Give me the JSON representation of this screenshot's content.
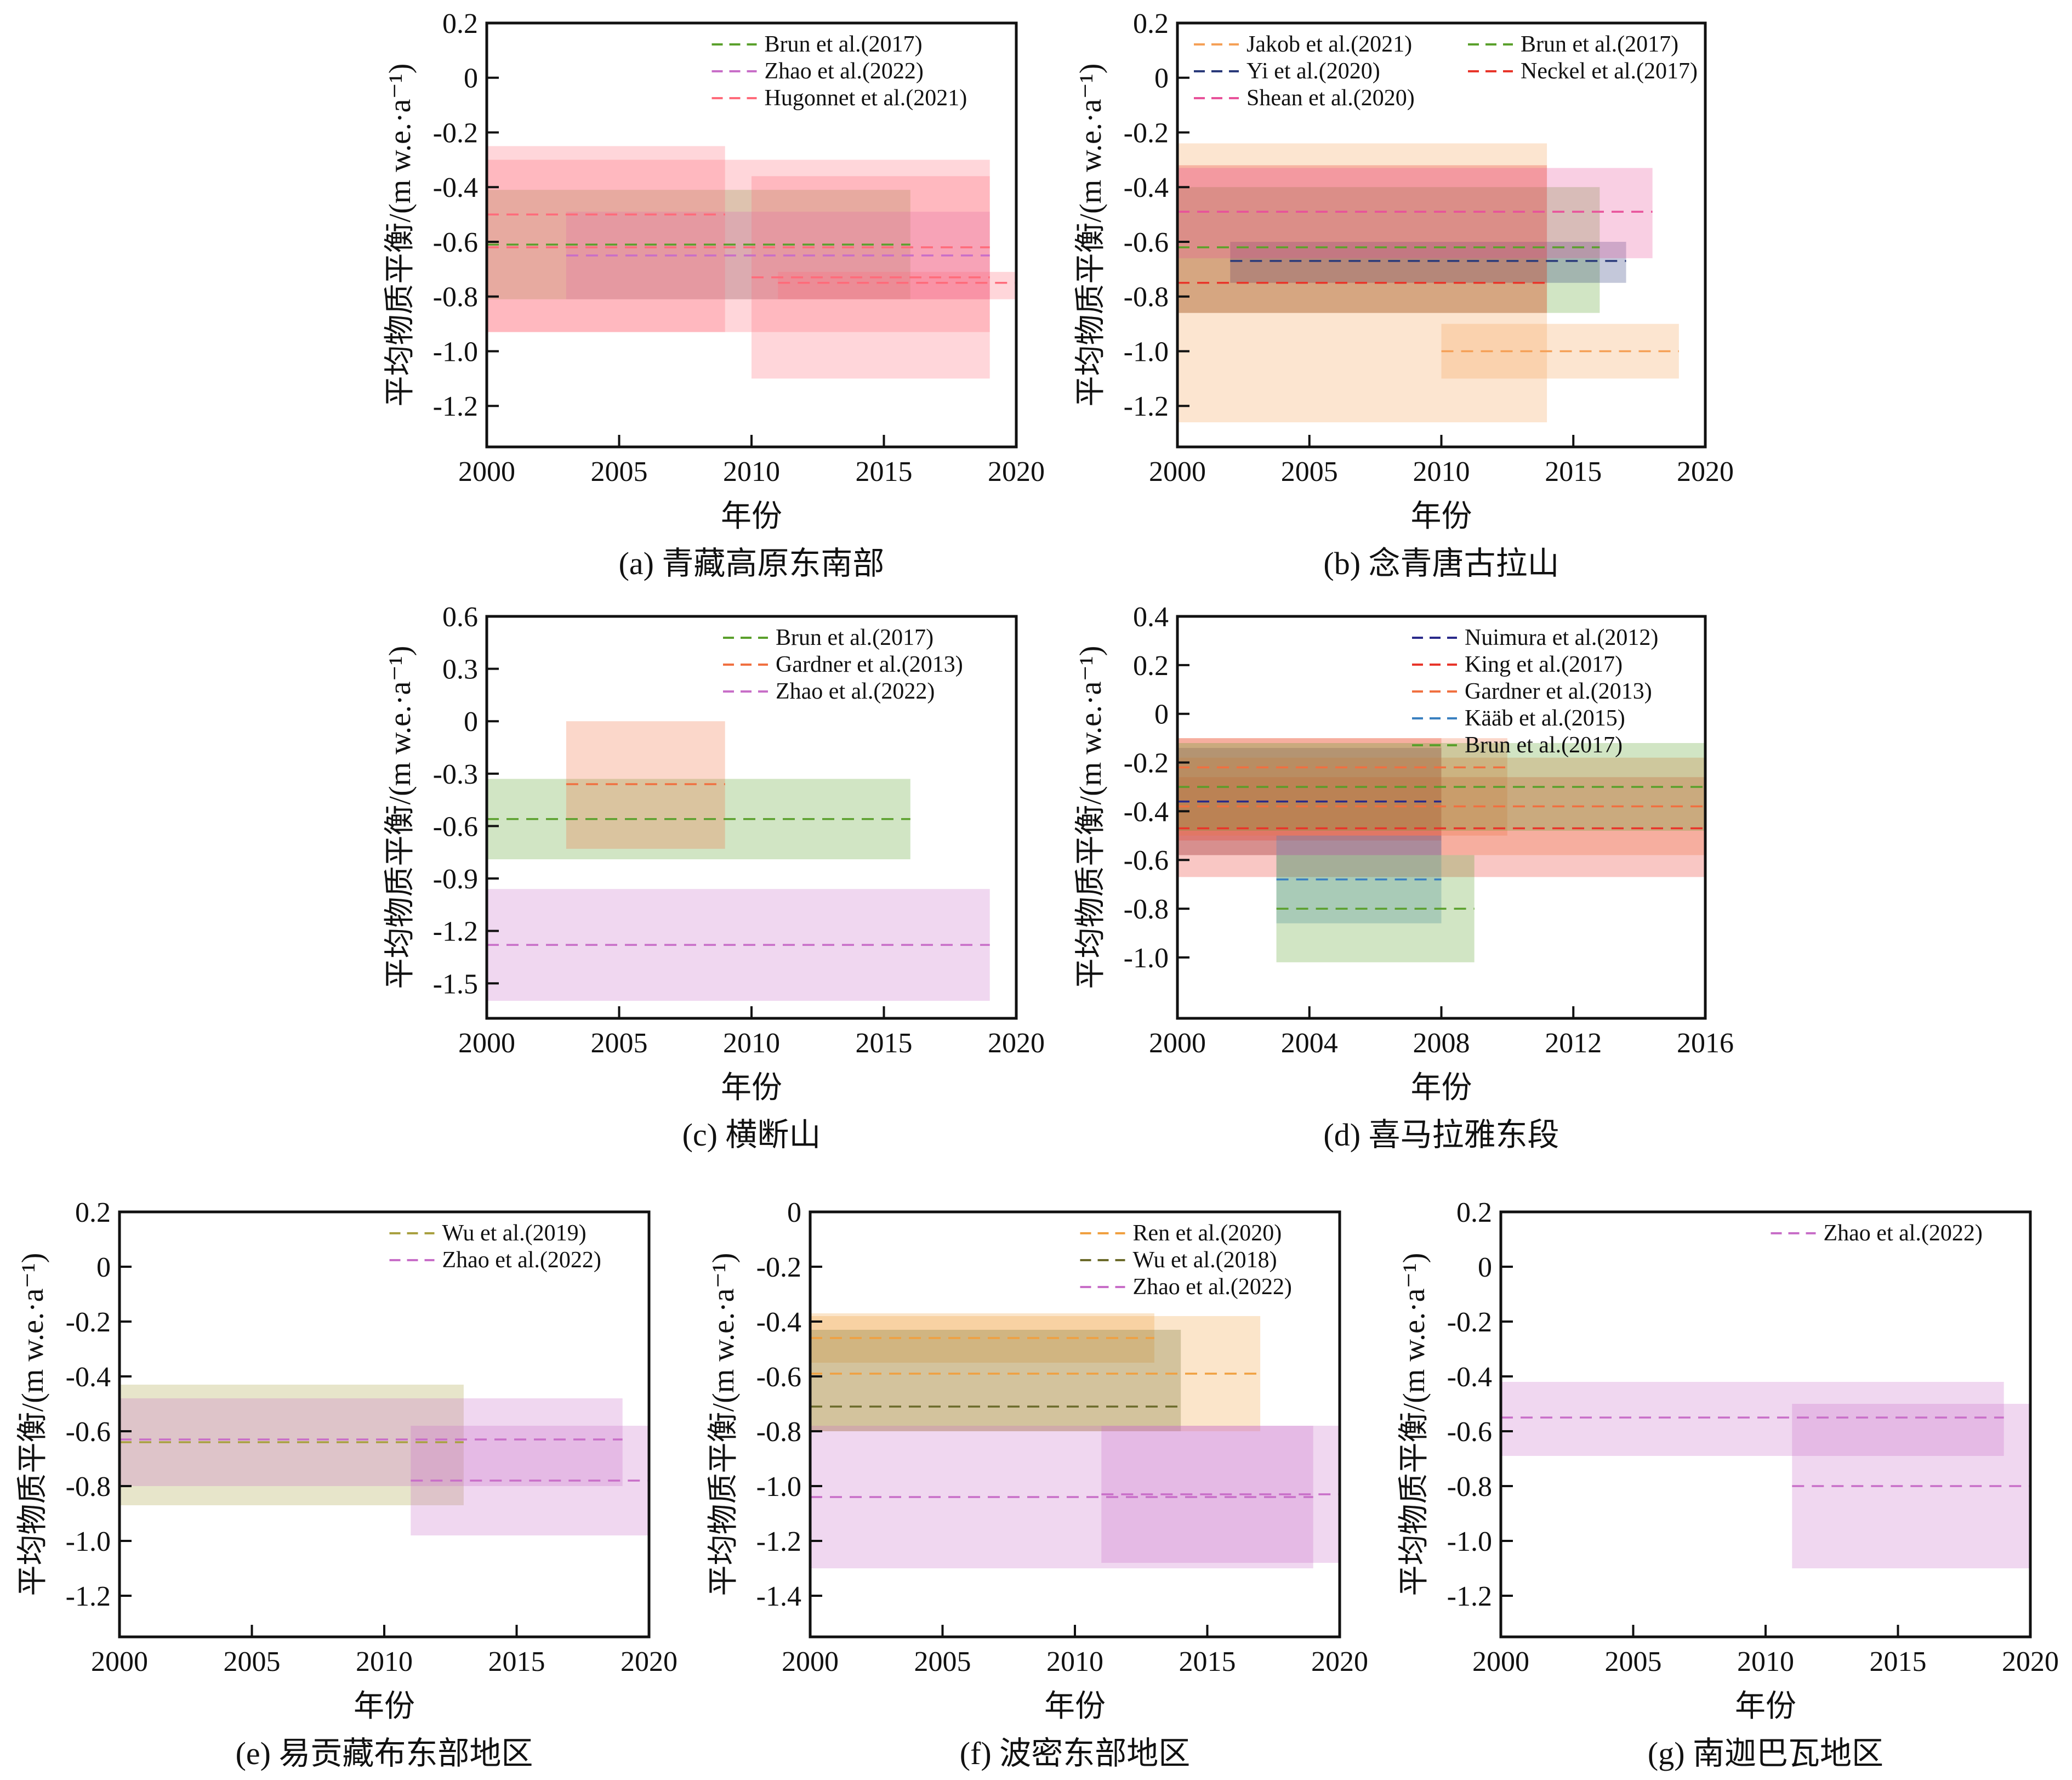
{
  "chart_data": [
    {
      "id": "a",
      "type": "bar",
      "caption": "(a) 青藏高原东南部",
      "xlabel": "年份",
      "ylabel": "平均物质平衡/(m w.e.·a⁻¹)",
      "xlim": [
        2000,
        2020
      ],
      "ylim": [
        -1.35,
        0.2
      ],
      "xticks": [
        2000,
        2005,
        2010,
        2015,
        2020
      ],
      "yticks": [
        0.2,
        0,
        -0.2,
        -0.4,
        -0.6,
        -0.8,
        -1.0,
        -1.2
      ],
      "ytick_labels": [
        "0.2",
        "0",
        "-0.2",
        "-0.4",
        "-0.6",
        "-0.8",
        "-1.0",
        "-1.2"
      ],
      "legend": {
        "placement": "top-right",
        "columns": 1
      },
      "series": [
        {
          "name": "Brun et al.(2017)",
          "color": "#5aa02c",
          "boxes": [
            {
              "x0": 2000,
              "x1": 2016,
              "y": -0.61,
              "lo": -0.81,
              "hi": -0.41
            }
          ]
        },
        {
          "name": "Zhao et al.(2022)",
          "color": "#c86ec8",
          "boxes": [
            {
              "x0": 2003,
              "x1": 2019,
              "y": -0.65,
              "lo": -0.81,
              "hi": -0.49
            }
          ]
        },
        {
          "name": "Hugonnet et al.(2021)",
          "color": "#ff6b7a",
          "boxes": [
            {
              "x0": 2000,
              "x1": 2009,
              "y": -0.5,
              "lo": -0.93,
              "hi": -0.25
            },
            {
              "x0": 2000,
              "x1": 2019,
              "y": -0.62,
              "lo": -0.93,
              "hi": -0.3
            },
            {
              "x0": 2010,
              "x1": 2019,
              "y": -0.73,
              "lo": -1.1,
              "hi": -0.36
            },
            {
              "x0": 2011,
              "x1": 2020,
              "y": -0.75,
              "lo": -0.81,
              "hi": -0.71
            }
          ]
        }
      ]
    },
    {
      "id": "b",
      "type": "bar",
      "caption": "(b) 念青唐古拉山",
      "xlabel": "年份",
      "ylabel": "平均物质平衡/(m w.e.·a⁻¹)",
      "xlim": [
        2000,
        2020
      ],
      "ylim": [
        -1.35,
        0.2
      ],
      "xticks": [
        2000,
        2005,
        2010,
        2015,
        2020
      ],
      "yticks": [
        0.2,
        0,
        -0.2,
        -0.4,
        -0.6,
        -0.8,
        -1.0,
        -1.2
      ],
      "ytick_labels": [
        "0.2",
        "0",
        "-0.2",
        "-0.4",
        "-0.6",
        "-0.8",
        "-1.0",
        "-1.2"
      ],
      "legend": {
        "placement": "top",
        "columns": 2
      },
      "series": [
        {
          "name": "Jakob et al.(2021)",
          "color": "#f5a056",
          "boxes": [
            {
              "x0": 2000,
              "x1": 2014,
              "y": -0.62,
              "lo": -1.26,
              "hi": -0.24
            },
            {
              "x0": 2010,
              "x1": 2019,
              "y": -1.0,
              "lo": -1.1,
              "hi": -0.9
            }
          ]
        },
        {
          "name": "Brun et al.(2017)",
          "color": "#5aa02c",
          "boxes": [
            {
              "x0": 2000,
              "x1": 2016,
              "y": -0.62,
              "lo": -0.86,
              "hi": -0.4
            }
          ]
        },
        {
          "name": "Yi et al.(2020)",
          "color": "#2a3a7a",
          "boxes": [
            {
              "x0": 2002,
              "x1": 2017,
              "y": -0.67,
              "lo": -0.75,
              "hi": -0.6
            }
          ]
        },
        {
          "name": "Neckel et al.(2017)",
          "color": "#e8352a",
          "boxes": [
            {
              "x0": 2000,
              "x1": 2014,
              "y": -0.75,
              "lo": -0.86,
              "hi": -0.32
            }
          ]
        },
        {
          "name": "Shean et al.(2020)",
          "color": "#e8529a",
          "boxes": [
            {
              "x0": 2000,
              "x1": 2018,
              "y": -0.49,
              "lo": -0.66,
              "hi": -0.33
            }
          ]
        }
      ]
    },
    {
      "id": "c",
      "type": "bar",
      "caption": "(c) 横断山",
      "xlabel": "年份",
      "ylabel": "平均物质平衡/(m w.e.·a⁻¹)",
      "xlim": [
        2000,
        2020
      ],
      "ylim": [
        -1.7,
        0.6
      ],
      "xticks": [
        2000,
        2005,
        2010,
        2015,
        2020
      ],
      "yticks": [
        0.6,
        0.3,
        0,
        -0.3,
        -0.6,
        -0.9,
        -1.2,
        -1.5
      ],
      "ytick_labels": [
        "0.6",
        "0.3",
        "0",
        "-0.3",
        "-0.6",
        "-0.9",
        "-1.2",
        "-1.5"
      ],
      "legend": {
        "placement": "top-right",
        "columns": 1
      },
      "series": [
        {
          "name": "Brun et al.(2017)",
          "color": "#5aa02c",
          "boxes": [
            {
              "x0": 2000,
              "x1": 2016,
              "y": -0.56,
              "lo": -0.79,
              "hi": -0.33
            }
          ]
        },
        {
          "name": "Gardner et al.(2013)",
          "color": "#f07040",
          "boxes": [
            {
              "x0": 2003,
              "x1": 2009,
              "y": -0.36,
              "lo": -0.73,
              "hi": 0.0
            }
          ]
        },
        {
          "name": "Zhao et al.(2022)",
          "color": "#c86ec8",
          "boxes": [
            {
              "x0": 2000,
              "x1": 2019,
              "y": -1.28,
              "lo": -1.6,
              "hi": -0.96
            }
          ]
        }
      ]
    },
    {
      "id": "d",
      "type": "bar",
      "caption": "(d) 喜马拉雅东段",
      "xlabel": "年份",
      "ylabel": "平均物质平衡/(m w.e.·a⁻¹)",
      "xlim": [
        2000,
        2016
      ],
      "ylim": [
        -1.25,
        0.4
      ],
      "xticks": [
        2000,
        2004,
        2008,
        2012,
        2016
      ],
      "yticks": [
        0.4,
        0.2,
        0,
        -0.2,
        -0.4,
        -0.6,
        -0.8,
        -1.0
      ],
      "ytick_labels": [
        "0.4",
        "0.2",
        "0",
        "-0.2",
        "-0.4",
        "-0.6",
        "-0.8",
        "-1.0"
      ],
      "legend": {
        "placement": "top-right",
        "columns": 1
      },
      "series": [
        {
          "name": "Nuimura et al.(2012)",
          "color": "#2a2a8a",
          "boxes": [
            {
              "x0": 2000,
              "x1": 2008,
              "y": -0.36,
              "lo": -0.58,
              "hi": -0.14
            }
          ]
        },
        {
          "name": "King et al.(2017)",
          "color": "#e8352a",
          "boxes": [
            {
              "x0": 2000,
              "x1": 2008,
              "y": -0.3,
              "lo": -0.52,
              "hi": -0.1
            },
            {
              "x0": 2000,
              "x1": 2016,
              "y": -0.47,
              "lo": -0.67,
              "hi": -0.26
            }
          ]
        },
        {
          "name": "Gardner et al.(2013)",
          "color": "#f07040",
          "boxes": [
            {
              "x0": 2000,
              "x1": 2010,
              "y": -0.22,
              "lo": -0.5,
              "hi": -0.1
            },
            {
              "x0": 2000,
              "x1": 2016,
              "y": -0.38,
              "lo": -0.58,
              "hi": -0.18
            }
          ]
        },
        {
          "name": "Kääb et al.(2015)",
          "color": "#3a80c0",
          "boxes": [
            {
              "x0": 2003,
              "x1": 2008,
              "y": -0.68,
              "lo": -0.86,
              "hi": -0.5
            }
          ]
        },
        {
          "name": "Brun et al.(2017)",
          "color": "#5aa02c",
          "boxes": [
            {
              "x0": 2003,
              "x1": 2009,
              "y": -0.8,
              "lo": -1.02,
              "hi": -0.58
            },
            {
              "x0": 2000,
              "x1": 2016,
              "y": -0.3,
              "lo": -0.48,
              "hi": -0.12
            }
          ]
        }
      ]
    },
    {
      "id": "e",
      "type": "bar",
      "caption": "(e) 易贡藏布东部地区",
      "xlabel": "年份",
      "ylabel": "平均物质平衡/(m w.e.·a⁻¹)",
      "xlim": [
        2000,
        2020
      ],
      "ylim": [
        -1.35,
        0.2
      ],
      "xticks": [
        2000,
        2005,
        2010,
        2015,
        2020
      ],
      "yticks": [
        0.2,
        0,
        -0.2,
        -0.4,
        -0.6,
        -0.8,
        -1.0,
        -1.2
      ],
      "ytick_labels": [
        "0.2",
        "0",
        "-0.2",
        "-0.4",
        "-0.6",
        "-0.8",
        "-1.0",
        "-1.2"
      ],
      "legend": {
        "placement": "top-right",
        "columns": 1
      },
      "series": [
        {
          "name": "Wu et al.(2019)",
          "color": "#a8a040",
          "boxes": [
            {
              "x0": 2000,
              "x1": 2013,
              "y": -0.64,
              "lo": -0.87,
              "hi": -0.43
            }
          ]
        },
        {
          "name": "Zhao et al.(2022)",
          "color": "#c86ec8",
          "boxes": [
            {
              "x0": 2000,
              "x1": 2019,
              "y": -0.63,
              "lo": -0.8,
              "hi": -0.48
            },
            {
              "x0": 2011,
              "x1": 2020,
              "y": -0.78,
              "lo": -0.98,
              "hi": -0.58
            }
          ]
        }
      ]
    },
    {
      "id": "f",
      "type": "bar",
      "caption": "(f) 波密东部地区",
      "xlabel": "年份",
      "ylabel": "平均物质平衡/(m w.e.·a⁻¹)",
      "xlim": [
        2000,
        2020
      ],
      "ylim": [
        -1.55,
        0
      ],
      "xticks": [
        2000,
        2005,
        2010,
        2015,
        2020
      ],
      "yticks": [
        0,
        -0.2,
        -0.4,
        -0.6,
        -0.8,
        -1.0,
        -1.2,
        -1.4
      ],
      "ytick_labels": [
        "0",
        "-0.2",
        "-0.4",
        "-0.6",
        "-0.8",
        "-1.0",
        "-1.2",
        "-1.4"
      ],
      "legend": {
        "placement": "top-right",
        "columns": 1
      },
      "series": [
        {
          "name": "Ren et al.(2020)",
          "color": "#f0a040",
          "boxes": [
            {
              "x0": 2000,
              "x1": 2013,
              "y": -0.46,
              "lo": -0.55,
              "hi": -0.37
            },
            {
              "x0": 2000,
              "x1": 2017,
              "y": -0.59,
              "lo": -0.8,
              "hi": -0.38
            }
          ]
        },
        {
          "name": "Wu et al.(2018)",
          "color": "#6b6a2a",
          "boxes": [
            {
              "x0": 2000,
              "x1": 2014,
              "y": -0.71,
              "lo": -0.8,
              "hi": -0.43
            }
          ]
        },
        {
          "name": "Zhao et al.(2022)",
          "color": "#c86ec8",
          "boxes": [
            {
              "x0": 2000,
              "x1": 2019,
              "y": -1.04,
              "lo": -1.3,
              "hi": -0.78
            },
            {
              "x0": 2011,
              "x1": 2020,
              "y": -1.03,
              "lo": -1.28,
              "hi": -0.78
            }
          ]
        }
      ]
    },
    {
      "id": "g",
      "type": "bar",
      "caption": "(g) 南迦巴瓦地区",
      "xlabel": "年份",
      "ylabel": "平均物质平衡/(m w.e.·a⁻¹)",
      "xlim": [
        2000,
        2020
      ],
      "ylim": [
        -1.35,
        0.2
      ],
      "xticks": [
        2000,
        2005,
        2010,
        2015,
        2020
      ],
      "yticks": [
        0.2,
        0,
        -0.2,
        -0.4,
        -0.6,
        -0.8,
        -1.0,
        -1.2
      ],
      "ytick_labels": [
        "0.2",
        "0",
        "-0.2",
        "-0.4",
        "-0.6",
        "-0.8",
        "-1.0",
        "-1.2"
      ],
      "legend": {
        "placement": "top-right",
        "columns": 1
      },
      "series": [
        {
          "name": "Zhao et al.(2022)",
          "color": "#c86ec8",
          "boxes": [
            {
              "x0": 2000,
              "x1": 2019,
              "y": -0.55,
              "lo": -0.69,
              "hi": -0.42
            },
            {
              "x0": 2011,
              "x1": 2020,
              "y": -0.8,
              "lo": -1.1,
              "hi": -0.5
            }
          ]
        }
      ]
    }
  ]
}
